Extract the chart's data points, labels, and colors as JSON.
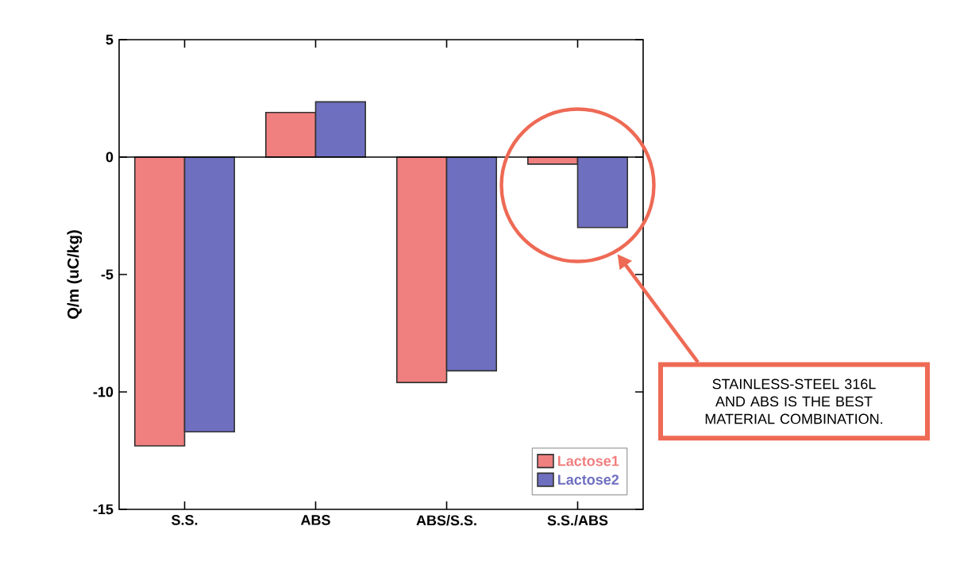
{
  "chart_data": {
    "type": "bar",
    "ylabel": "Q/m (uC/kg)",
    "categories": [
      "S.S.",
      "ABS",
      "ABS/S.S.",
      "S.S./ABS"
    ],
    "series": [
      {
        "name": "Lactose1",
        "color": "#f07f7f",
        "values": [
          -12.3,
          1.9,
          -9.6,
          -0.3
        ]
      },
      {
        "name": "Lactose2",
        "color": "#6f6fc0",
        "values": [
          -11.7,
          2.35,
          -9.1,
          -3.0
        ]
      }
    ],
    "ylim": [
      -15,
      5
    ],
    "yticks": [
      -15,
      -10,
      -5,
      0,
      5
    ],
    "legend": "bottom right",
    "annotations": [
      "STAINLESS-STEEL 316L AND ABS IS THE BEST MATERIAL COMBINATION."
    ]
  }
}
